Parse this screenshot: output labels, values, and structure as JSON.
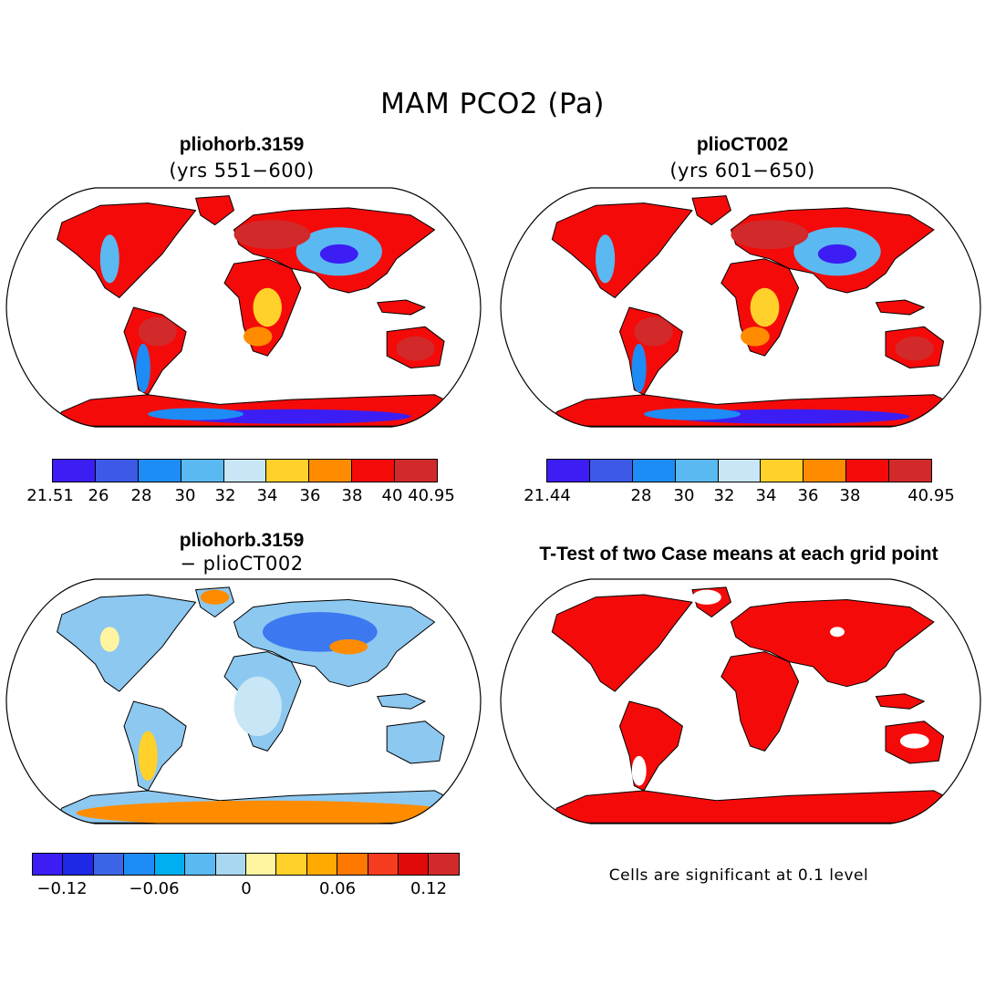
{
  "figure": {
    "title": "MAM PCO2 (Pa)"
  },
  "panels": {
    "top_left": {
      "title": "pliohorb.3159",
      "subtitle": "(yrs 551−600)",
      "fill": {
        "ocean": "#ffffff",
        "land": "#f50a0a",
        "dark": "#d22a2a",
        "orange": "#ff8c00",
        "yellow": "#ffd12a",
        "pale": "#c8e6f5",
        "lightblue": "#5ab9f0",
        "blue": "#1e8cf5",
        "violet": "#3c1ef5"
      },
      "colorbar": {
        "colors": [
          "#3c1ef5",
          "#3c5ae6",
          "#1e8cf5",
          "#5ab9f0",
          "#c8e6f5",
          "#ffd12a",
          "#ff8c00",
          "#f50a0a",
          "#d22a2a"
        ],
        "ticks": [
          "21.51",
          "26",
          "28",
          "30",
          "32",
          "34",
          "36",
          "38",
          "40",
          "40.95"
        ]
      }
    },
    "top_right": {
      "title": "plioCT002",
      "subtitle": "(yrs 601−650)",
      "fill": {
        "ocean": "#ffffff",
        "land": "#f50a0a",
        "dark": "#d22a2a",
        "orange": "#ff8c00",
        "yellow": "#ffd12a",
        "pale": "#c8e6f5",
        "lightblue": "#5ab9f0",
        "blue": "#1e8cf5",
        "violet": "#3c1ef5"
      },
      "colorbar": {
        "colors": [
          "#3c1ef5",
          "#3c5ae6",
          "#1e8cf5",
          "#5ab9f0",
          "#c8e6f5",
          "#ffd12a",
          "#ff8c00",
          "#f50a0a",
          "#d22a2a"
        ],
        "ticks": [
          "21.44",
          "28",
          "30",
          "32",
          "34",
          "36",
          "38",
          "40.95"
        ]
      }
    },
    "bottom_left": {
      "title": "pliohorb.3159",
      "subtitle": "− plioCT002",
      "fill": {
        "ocean": "#ffffff",
        "land": "#8cc8f0",
        "dark": "#5aa0f0",
        "orange": "#ff8c00",
        "yellow": "#ffd12a",
        "pale": "#fff5a0",
        "lightblue": "#c8e6f5",
        "blue": "#3c78f0",
        "violet": "#3c5ae6"
      },
      "colorbar": {
        "colors": [
          "#3c1ef5",
          "#1e28e6",
          "#3c64e6",
          "#1e8cf5",
          "#00aff0",
          "#5ab9f0",
          "#aad7f0",
          "#fff5a0",
          "#ffd12a",
          "#ffaa00",
          "#ff7800",
          "#f53c1e",
          "#e10a0a",
          "#d22a2a"
        ],
        "ticks": [
          "−0.12",
          "−0.06",
          "0",
          "0.06",
          "0.12"
        ]
      }
    },
    "bottom_right": {
      "title": "T-Test of two Case means at each grid point",
      "note": "Cells are significant at 0.1 level",
      "fill": {
        "ocean": "#ffffff",
        "land": "#f50a0a"
      }
    }
  },
  "colors": {
    "coast": "#000000",
    "ocean": "#ffffff"
  }
}
